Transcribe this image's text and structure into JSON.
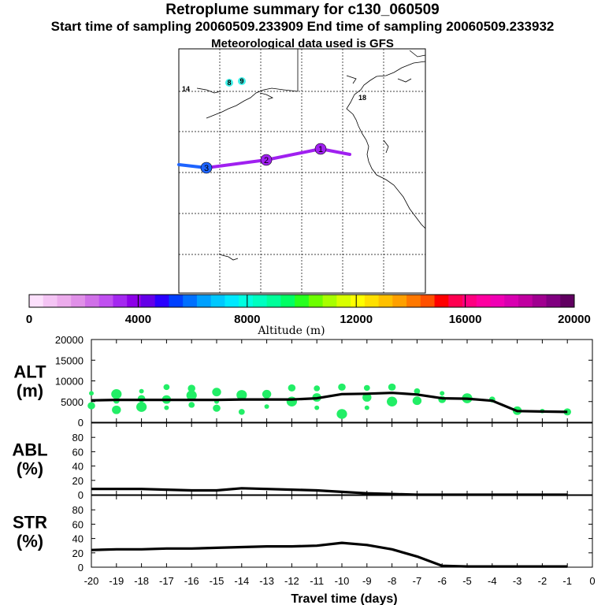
{
  "header": {
    "title": "Retroplume summary for c130_060509",
    "sampling_line": "Start time of sampling 20060509.233909     End time of sampling 20060509.233932",
    "met_line": "Meteorological data used is GFS"
  },
  "map": {
    "trajectory_labels": [
      "1",
      "2",
      "3"
    ],
    "trajectory_colors": [
      "#a020f0",
      "#a020f0",
      "#1e64ff"
    ],
    "marker_labels": [
      "14",
      "8",
      "9",
      "18"
    ]
  },
  "colorbar": {
    "title": "Altitude (m)",
    "tick_labels": [
      "0",
      "4000",
      "8000",
      "12000",
      "16000",
      "20000"
    ],
    "colors": [
      "#fce0fc",
      "#f4c4f4",
      "#ecacec",
      "#e090e8",
      "#d070e8",
      "#c050f0",
      "#a428f0",
      "#8c00e8",
      "#6400e8",
      "#2a00ff",
      "#0040ff",
      "#0070ff",
      "#00a0ff",
      "#00c8ff",
      "#00e8ff",
      "#00ffe0",
      "#00ffc0",
      "#00ff9a",
      "#00ff64",
      "#28ff1e",
      "#6cff00",
      "#a8ff00",
      "#d8ff00",
      "#ffff00",
      "#ffe000",
      "#ffc000",
      "#ffa000",
      "#ff7800",
      "#ff5000",
      "#ff0000",
      "#ff0050",
      "#ff0080",
      "#ff00a0",
      "#f000b4",
      "#d800b0",
      "#c000a0",
      "#a00090",
      "#800080",
      "#600060"
    ]
  },
  "chart_data": [
    {
      "type": "line",
      "panel": "ALT",
      "ylabel": "ALT (m)",
      "ylabel_lines": [
        "ALT",
        "(m)"
      ],
      "ylim": [
        0,
        20000
      ],
      "yticks": [
        "20000",
        "15000",
        "10000",
        "5000",
        "0"
      ],
      "x": [
        -20,
        -19,
        -18,
        -17,
        -16,
        -15,
        -14,
        -13,
        -12,
        -11,
        -10,
        -9,
        -8,
        -7,
        -6,
        -5,
        -4,
        -3,
        -2,
        -1
      ],
      "series": [
        {
          "name": "median altitude",
          "values": [
            5300,
            5400,
            5400,
            5400,
            5400,
            5400,
            5500,
            5500,
            5500,
            5800,
            6800,
            6900,
            7100,
            6700,
            5800,
            5700,
            5200,
            2700,
            2600,
            2500
          ]
        }
      ],
      "scatter": [
        {
          "x": -20,
          "y": 7000
        },
        {
          "x": -20,
          "y": 4000
        },
        {
          "x": -19,
          "y": 6800
        },
        {
          "x": -19,
          "y": 5200
        },
        {
          "x": -19,
          "y": 3000
        },
        {
          "x": -18,
          "y": 7500
        },
        {
          "x": -18,
          "y": 5700
        },
        {
          "x": -18,
          "y": 3700
        },
        {
          "x": -17,
          "y": 8500
        },
        {
          "x": -17,
          "y": 5500
        },
        {
          "x": -17,
          "y": 3500
        },
        {
          "x": -16,
          "y": 8200
        },
        {
          "x": -16,
          "y": 6500
        },
        {
          "x": -16,
          "y": 4200
        },
        {
          "x": -15,
          "y": 7300
        },
        {
          "x": -15,
          "y": 5000
        },
        {
          "x": -15,
          "y": 3400
        },
        {
          "x": -14,
          "y": 6600
        },
        {
          "x": -14,
          "y": 2500
        },
        {
          "x": -13,
          "y": 6800
        },
        {
          "x": -13,
          "y": 3800
        },
        {
          "x": -12,
          "y": 8300
        },
        {
          "x": -12,
          "y": 5000
        },
        {
          "x": -11,
          "y": 8200
        },
        {
          "x": -11,
          "y": 6000
        },
        {
          "x": -11,
          "y": 3500
        },
        {
          "x": -10,
          "y": 8500
        },
        {
          "x": -10,
          "y": 2000
        },
        {
          "x": -9,
          "y": 8300
        },
        {
          "x": -9,
          "y": 6000
        },
        {
          "x": -9,
          "y": 3500
        },
        {
          "x": -8,
          "y": 8500
        },
        {
          "x": -8,
          "y": 5000
        },
        {
          "x": -7,
          "y": 7500
        },
        {
          "x": -7,
          "y": 5200
        },
        {
          "x": -6,
          "y": 7000
        },
        {
          "x": -6,
          "y": 5500
        },
        {
          "x": -5,
          "y": 5800
        },
        {
          "x": -4,
          "y": 5500
        },
        {
          "x": -3,
          "y": 2800
        },
        {
          "x": -2,
          "y": 2700
        },
        {
          "x": -1,
          "y": 2500
        }
      ]
    },
    {
      "type": "line",
      "panel": "ABL",
      "ylabel": "ABL (%)",
      "ylabel_lines": [
        "ABL",
        "(%)"
      ],
      "ylim": [
        0,
        100
      ],
      "yticks": [
        "80",
        "60",
        "40",
        "20",
        "0"
      ],
      "x": [
        -20,
        -19,
        -18,
        -17,
        -16,
        -15,
        -14,
        -13,
        -12,
        -11,
        -10,
        -9,
        -8,
        -7,
        -6,
        -5,
        -4,
        -3,
        -2,
        -1
      ],
      "series": [
        {
          "name": "ABL fraction",
          "values": [
            8,
            8,
            8,
            7,
            6,
            6,
            9,
            8,
            7,
            6,
            4,
            2,
            1,
            0,
            0,
            0,
            0,
            0,
            0,
            0
          ]
        }
      ]
    },
    {
      "type": "line",
      "panel": "STR",
      "ylabel": "STR (%)",
      "ylabel_lines": [
        "STR",
        "(%)"
      ],
      "ylim": [
        0,
        100
      ],
      "yticks": [
        "80",
        "60",
        "40",
        "20",
        "0"
      ],
      "x": [
        -20,
        -19,
        -18,
        -17,
        -16,
        -15,
        -14,
        -13,
        -12,
        -11,
        -10,
        -9,
        -8,
        -7,
        -6,
        -5,
        -4,
        -3,
        -2,
        -1
      ],
      "series": [
        {
          "name": "stratospheric fraction",
          "values": [
            24,
            25,
            25,
            26,
            26,
            27,
            28,
            29,
            29,
            30,
            34,
            31,
            25,
            15,
            2,
            1,
            1,
            1,
            1,
            1
          ]
        }
      ],
      "xlabel": "Travel time (days)",
      "xticks": [
        "-20",
        "-19",
        "-18",
        "-17",
        "-16",
        "-15",
        "-14",
        "-13",
        "-12",
        "-11",
        "-10",
        "-9",
        "-8",
        "-7",
        "-6",
        "-5",
        "-4",
        "-3",
        "-2",
        "-1",
        "0"
      ]
    }
  ]
}
